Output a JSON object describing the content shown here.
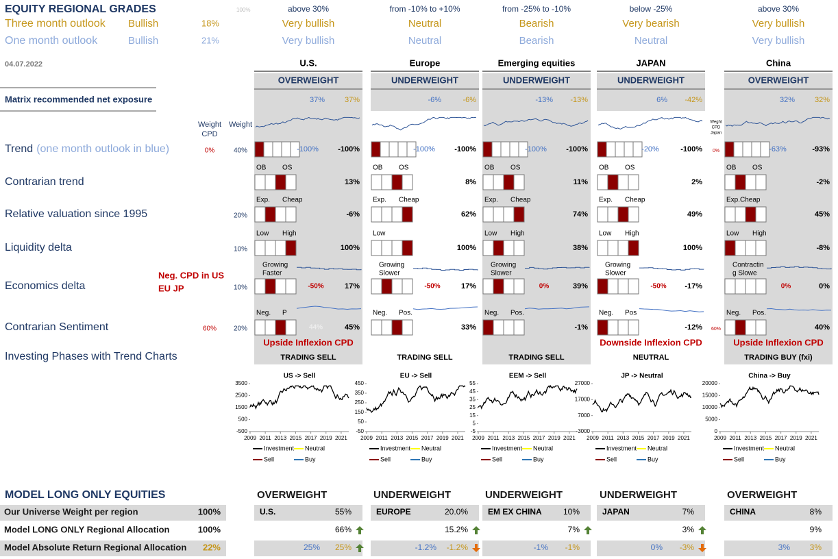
{
  "header": {
    "title": "EQUITY REGIONAL GRADES",
    "scale": "100%",
    "date": "04.07.2022",
    "three_month": {
      "label": "Three month outlook",
      "grade": "Bullish",
      "pct": "18%"
    },
    "one_month": {
      "label": "One month outlook",
      "grade": "Bullish",
      "pct": "21%"
    }
  },
  "left": {
    "exposure": "Matrix recommended net exposure",
    "weight_cpd": [
      "Weight",
      "CPD"
    ],
    "weight": "Weight",
    "trend": {
      "label": "Trend",
      "note": "(one month outlook in blue)",
      "cpd": "0%",
      "weight": "40%"
    },
    "contrarian": {
      "label": "Contrarian trend"
    },
    "valuation": {
      "label": "Relative valuation since 1995",
      "weight": "20%"
    },
    "liquidity": {
      "label": "Liquidity delta",
      "weight": "10%"
    },
    "economics": {
      "label": "Economics delta",
      "cpd_note": [
        "Neg. CPD in US",
        "EU JP"
      ],
      "weight": "10%"
    },
    "sentiment": {
      "label": "Contrarian Sentiment",
      "cpd": "60%",
      "weight": "20%"
    },
    "phases": "Investing Phases with Trend Charts"
  },
  "legend": [
    "Investment",
    "Neutral",
    "Sell",
    "Buy"
  ],
  "legend_colors": [
    "#000000",
    "#ffff00",
    "#8b0000",
    "#2e75b6"
  ],
  "regions": [
    {
      "range": "above 30%",
      "three_month": "Very bullish",
      "one_month": "Very bullish",
      "name": "U.S.",
      "stance": "OVERWEIGHT",
      "exposure_blue": "37%",
      "exposure_gold": "37%",
      "shaded": true,
      "trend": {
        "blue": "-100%",
        "value": "-100%",
        "filled": 0
      },
      "contrarian": {
        "labels": [
          "OB",
          "OS"
        ],
        "value": "13%",
        "filled": 2
      },
      "valuation": {
        "labels": [
          "Exp.",
          "Cheap"
        ],
        "value": "-6%",
        "filled": 1
      },
      "liquidity": {
        "labels": [
          "Low",
          "High"
        ],
        "value": "100%",
        "filled": 3
      },
      "economics": {
        "labels": [
          "Growing",
          "Faster"
        ],
        "mid": "-50%",
        "value": "17%",
        "filled": 1
      },
      "sentiment": {
        "labels": [
          "Neg.",
          "P"
        ],
        "mid": "44%",
        "value": "45%",
        "filled": 2
      },
      "inflexion": "Upside Inflexion CPD",
      "phase": "TRADING SELL",
      "chart": {
        "title": "US -> Sell",
        "ylim": [
          -500,
          3500
        ],
        "yticks": [
          -500,
          500,
          1500,
          2500,
          3500
        ],
        "xlim": [
          2009,
          2022
        ],
        "xticks": [
          2009,
          2011,
          2013,
          2015,
          2017,
          2019,
          2021
        ]
      },
      "bottom": {
        "stance": "OVERWEIGHT",
        "name": "U.S.",
        "weight": "55%",
        "model": "66%",
        "model_arrow": "up",
        "ar_blue": "25%",
        "ar_gold": "25%",
        "ar_arrow": "up"
      }
    },
    {
      "range": "from -10% to +10%",
      "three_month": "Neutral",
      "one_month": "Neutral",
      "name": "Europe",
      "stance": "UNDERWEIGHT",
      "exposure_blue": "-6%",
      "exposure_gold": "-6%",
      "shaded": false,
      "trend": {
        "blue": "-100%",
        "value": "-100%",
        "filled": 0
      },
      "contrarian": {
        "labels": [
          "OB",
          "OS"
        ],
        "value": "8%",
        "filled": 2
      },
      "valuation": {
        "labels": [
          "Exp.",
          "Cheap"
        ],
        "value": "62%",
        "filled": 3
      },
      "liquidity": {
        "labels": [
          "Low"
        ],
        "value": "100%",
        "filled": 3
      },
      "economics": {
        "labels": [
          "Growing",
          "Slower"
        ],
        "mid": "-50%",
        "value": "17%",
        "filled": 1
      },
      "sentiment": {
        "labels": [
          "Neg.",
          "Pos."
        ],
        "value": "33%",
        "filled": 2
      },
      "phase": "TRADING SELL",
      "chart": {
        "title": "EU -> Sell",
        "ylim": [
          -50,
          450
        ],
        "yticks": [
          -50,
          50,
          150,
          250,
          350,
          450
        ],
        "xlim": [
          2009,
          2022
        ],
        "xticks": [
          2009,
          2011,
          2013,
          2015,
          2017,
          2019,
          2021
        ]
      },
      "bottom": {
        "stance": "UNDERWEIGHT",
        "name": "EUROPE",
        "weight": "20.0%",
        "model": "15.2%",
        "model_arrow": "up",
        "ar_blue": "-1.2%",
        "ar_gold": "-1.2%",
        "ar_arrow": "down"
      }
    },
    {
      "range": "from -25% to -10%",
      "three_month": "Bearish",
      "one_month": "Bearish",
      "name": "Emerging equities",
      "stance": "UNDERWEIGHT",
      "exposure_blue": "-13%",
      "exposure_gold": "-13%",
      "shaded": true,
      "trend": {
        "blue": "-100%",
        "value": "-100%",
        "filled": 0
      },
      "contrarian": {
        "labels": [
          "OB",
          "OS"
        ],
        "value": "11%",
        "filled": 2
      },
      "valuation": {
        "labels": [
          "Exp.",
          "Cheap"
        ],
        "value": "74%",
        "filled": 3
      },
      "liquidity": {
        "labels": [
          "Low",
          "High"
        ],
        "value": "38%",
        "filled": 1
      },
      "economics": {
        "labels": [
          "Growing",
          "Slower"
        ],
        "mid": "0%",
        "value": "39%",
        "filled": 1
      },
      "sentiment": {
        "labels": [
          "Neg.",
          "Pos."
        ],
        "value": "-1%",
        "filled": 0
      },
      "phase": "TRADING SELL",
      "chart": {
        "title": "EEM -> Sell",
        "ylim": [
          -5,
          55
        ],
        "yticks": [
          -5,
          5,
          15,
          25,
          35,
          45,
          55
        ],
        "xlim": [
          2009,
          2022
        ],
        "xticks": [
          2009,
          2011,
          2013,
          2015,
          2017,
          2019,
          2021
        ]
      },
      "bottom": {
        "stance": "UNDERWEIGHT",
        "name": "EM EX CHINA",
        "weight": "10%",
        "model": "7%",
        "model_arrow": "up",
        "ar_blue": "-1%",
        "ar_gold": "-1%",
        "ar_arrow": null
      }
    },
    {
      "range": "below -25%",
      "three_month": "Very bearish",
      "one_month": "Neutral",
      "name": "JAPAN",
      "stance": "UNDERWEIGHT",
      "exposure_blue": "6%",
      "exposure_gold": "-42%",
      "shaded": false,
      "cpd_heading": [
        "Weght",
        "CPD",
        "Japan"
      ],
      "trend_cpd": "0%",
      "sentiment_cpd": "60%",
      "trend": {
        "blue": "-20%",
        "value": "-100%",
        "filled": 0
      },
      "contrarian": {
        "labels": [
          "OB",
          "OS"
        ],
        "value": "2%",
        "filled": 1
      },
      "valuation": {
        "labels": [
          "Exp.",
          "Cheap"
        ],
        "value": "49%",
        "filled": 2
      },
      "liquidity": {
        "labels": [
          "Low",
          "High"
        ],
        "value": "100%",
        "filled": 3
      },
      "economics": {
        "labels": [
          "Growing",
          "Slower"
        ],
        "mid": "-50%",
        "value": "-17%",
        "filled": 0
      },
      "sentiment": {
        "labels": [
          "Neg.",
          "Pos"
        ],
        "value": "-12%",
        "filled": 0
      },
      "inflexion": "Downside Inflexion CPD",
      "phase": "NEUTRAL",
      "chart": {
        "title": "JP -> Neutral",
        "ylim": [
          -3000,
          27000
        ],
        "yticks": [
          -3000,
          7000,
          17000,
          27000
        ],
        "xlim": [
          2009,
          2022
        ],
        "xticks": [
          2009,
          2011,
          2013,
          2015,
          2017,
          2019,
          2021
        ]
      },
      "bottom": {
        "stance": "UNDERWEIGHT",
        "name": "JAPAN",
        "weight": "7%",
        "model": "3%",
        "model_arrow": "up",
        "ar_blue": "0%",
        "ar_gold": "-3%",
        "ar_arrow": "down"
      }
    },
    {
      "range": "above 30%",
      "three_month": "Very bullish",
      "one_month": "Very bullish",
      "name": "China",
      "stance": "OVERWEIGHT",
      "exposure_blue": "32%",
      "exposure_gold": "32%",
      "shaded": true,
      "trend": {
        "blue": "-63%",
        "value": "-93%",
        "filled": 0
      },
      "contrarian": {
        "labels": [
          "OB",
          "OS"
        ],
        "value": "-2%",
        "filled": 1
      },
      "valuation": {
        "labels": [
          "Exp.Cheap"
        ],
        "value": "45%",
        "filled": 2
      },
      "liquidity": {
        "labels": [
          "Low",
          "High"
        ],
        "value": "-8%",
        "filled": 0
      },
      "economics": {
        "labels": [
          "Contractin",
          "g Slowe"
        ],
        "mid": "0%",
        "value": "0%",
        "filled": null
      },
      "sentiment": {
        "labels": [
          "Neg.",
          "Pos."
        ],
        "value": "40%",
        "filled": 1
      },
      "inflexion": "Upside Inflexion CPD",
      "phase": "TRADING BUY (fxi)",
      "chart": {
        "title": "China -> Buy",
        "ylim": [
          0,
          20000
        ],
        "yticks": [
          0,
          5000,
          10000,
          15000,
          20000
        ],
        "xlim": [
          2009,
          2022
        ],
        "xticks": [
          2009,
          2011,
          2013,
          2015,
          2017,
          2019,
          2021
        ]
      },
      "bottom": {
        "stance": "OVERWEIGHT",
        "name": "CHINA",
        "weight": "8%",
        "model": "9%",
        "model_arrow": null,
        "ar_blue": "3%",
        "ar_gold": "3%",
        "ar_arrow": null
      }
    }
  ],
  "model": {
    "title": "MODEL LONG ONLY EQUITIES",
    "rows": [
      {
        "label": "Our Universe Weight per region",
        "value": "100%"
      },
      {
        "label": "Model LONG ONLY Regional Allocation",
        "value": "100%"
      },
      {
        "label": "Model Absolute Return Regional Allocation",
        "value": "22%"
      }
    ]
  }
}
